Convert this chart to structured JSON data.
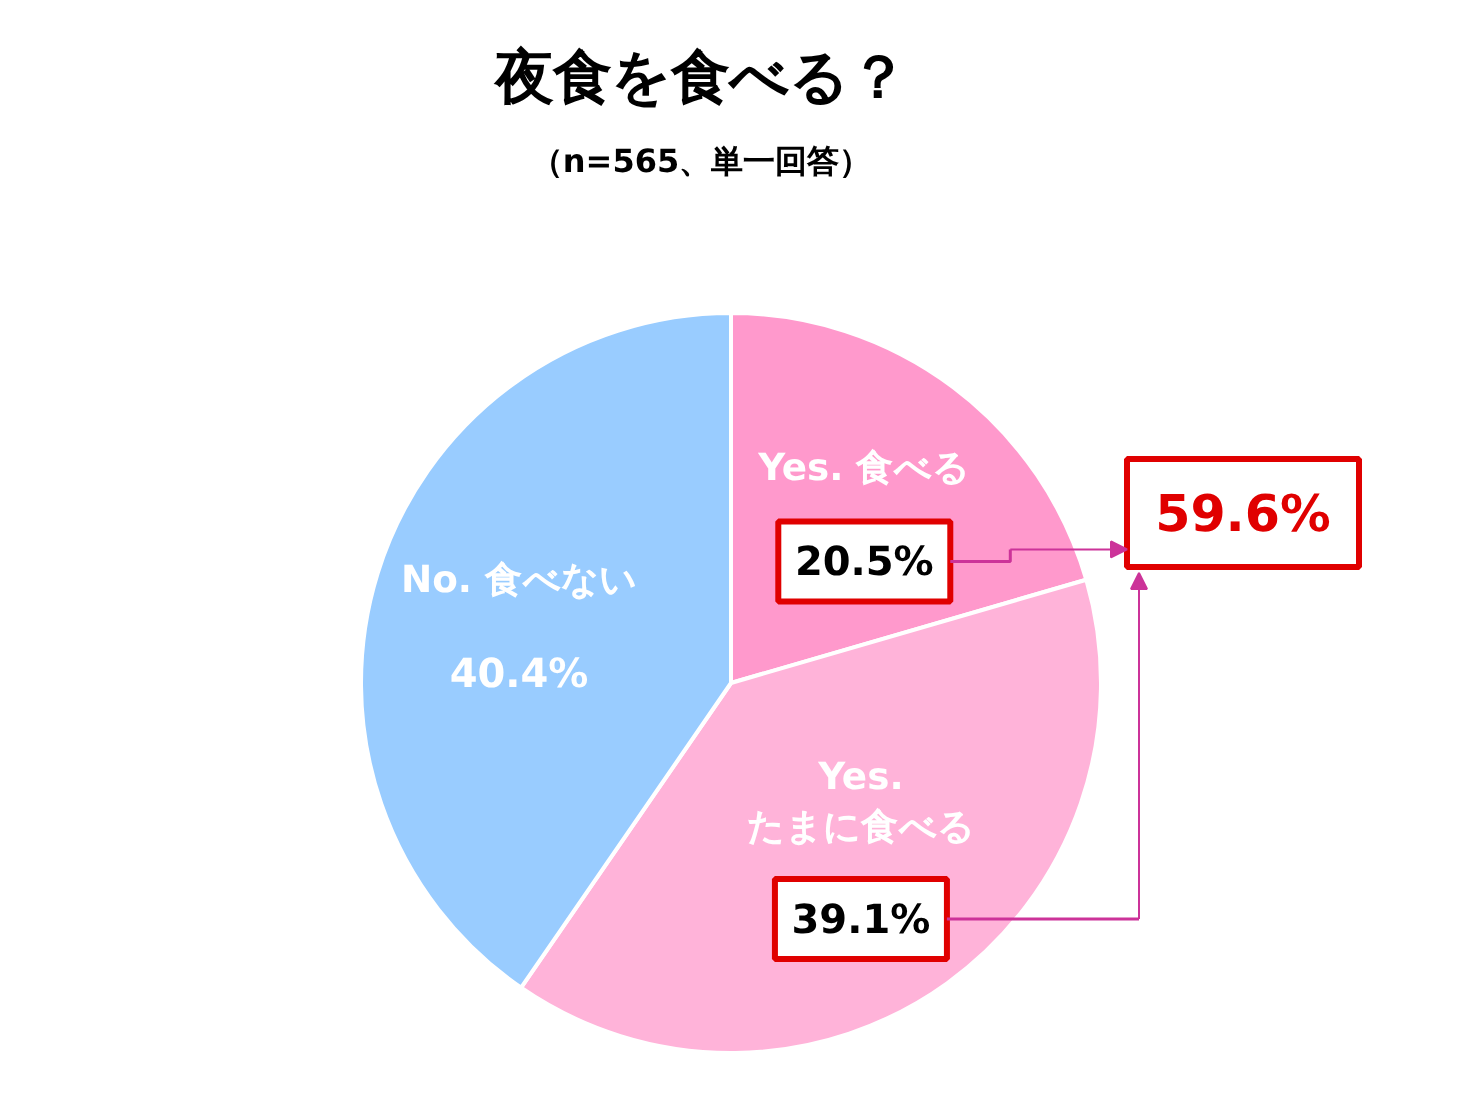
{
  "chart_data": {
    "type": "pie",
    "title": "夜食を食べる？",
    "subtitle": "（n=565、単一回答）",
    "categories": [
      "Yes. 食べる",
      "Yes.\nたまに食べる",
      "No. 食べない"
    ],
    "values": [
      20.5,
      39.1,
      40.4
    ],
    "colors": [
      "#ff99cc",
      "#ffb3d9",
      "#99ccff"
    ],
    "value_labels": [
      "20.5%",
      "39.1%",
      "40.4%"
    ],
    "annotations": [
      "59.6%"
    ]
  }
}
